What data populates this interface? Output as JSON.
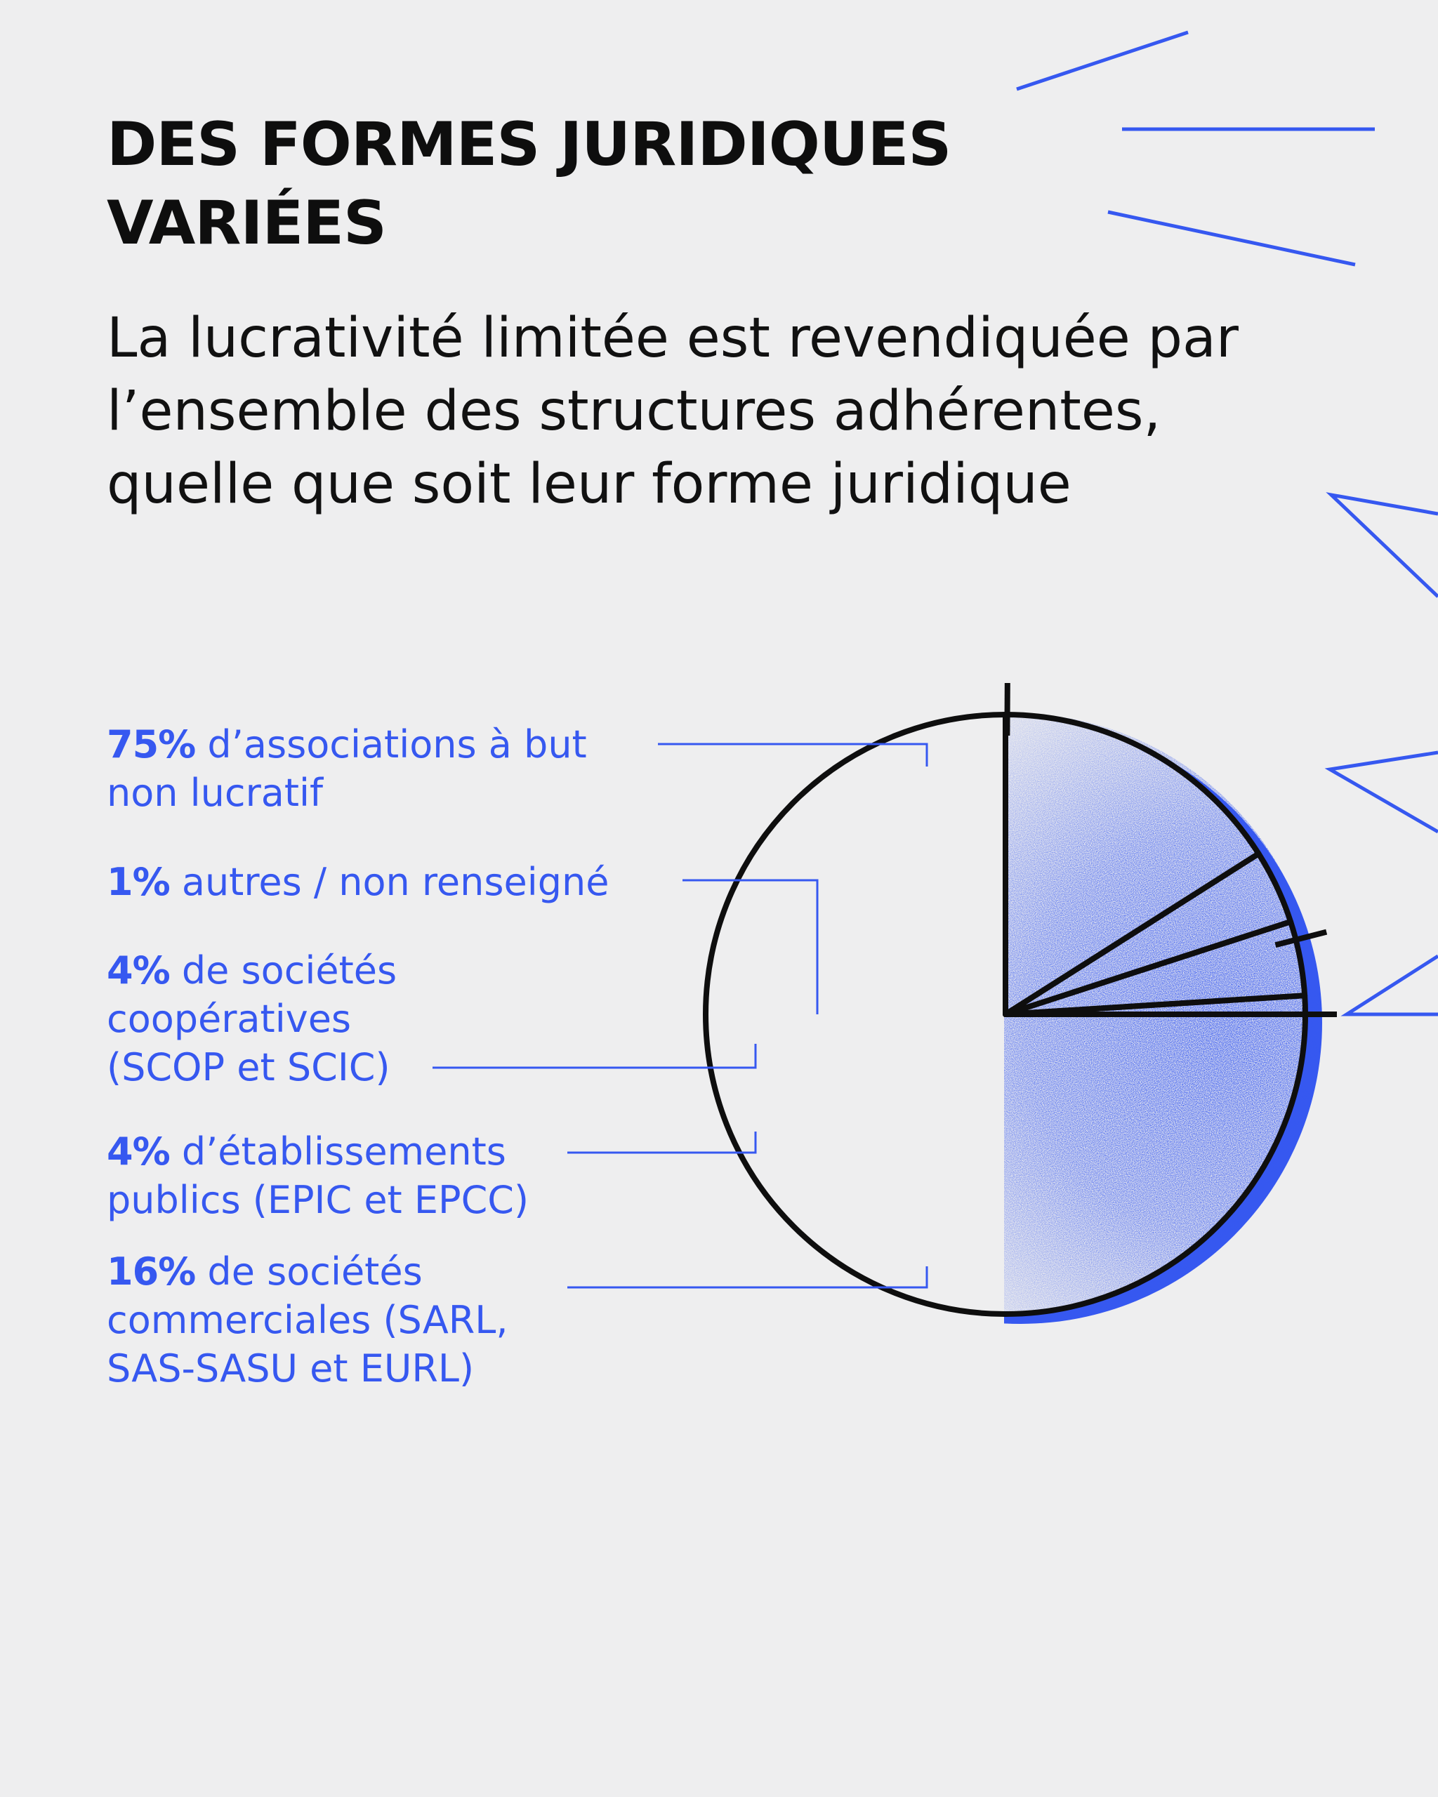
{
  "title": "DES FORMES JURIDIQUES VARIÉES",
  "subtitle": "La lucrativité limitée est revendiquée par l’ensemble des structures adhérentes, quelle que soit leur forme juridique",
  "colors": {
    "accent": "#3658f0",
    "ink": "#0e0e0e",
    "background": "#eeeeef"
  },
  "labels": [
    {
      "pct": "75%",
      "text": " d’associations à but non lucratif"
    },
    {
      "pct": "1%",
      "text": " autres / non renseigné"
    },
    {
      "pct": "4%",
      "text": " de sociétés coopératives (SCOP et SCIC)"
    },
    {
      "pct": "4%",
      "text": " d’établissements publics (EPIC et EPCC)"
    },
    {
      "pct": "16%",
      "text": " de sociétés commerciales (SARL, SAS-SASU et EURL)"
    }
  ],
  "chart_data": {
    "type": "pie",
    "title": "DES FORMES JURIDIQUES VARIÉES",
    "categories": [
      "associations à but non lucratif",
      "autres / non renseigné",
      "sociétés coopératives (SCOP et SCIC)",
      "établissements publics (EPIC et EPCC)",
      "sociétés commerciales (SARL, SAS-SASU et EURL)"
    ],
    "values": [
      75,
      1,
      4,
      4,
      16
    ],
    "unit": "%",
    "legend": "left, with leader lines"
  }
}
